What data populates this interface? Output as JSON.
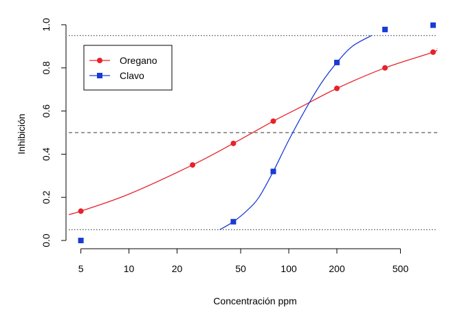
{
  "chart_data": {
    "type": "scatter",
    "xlabel": "Concentración ppm",
    "ylabel": "Inhibición",
    "x_scale": "log",
    "xlim": [
      4.2,
      850
    ],
    "ylim": [
      0.0,
      1.0
    ],
    "x_ticks": [
      5,
      10,
      20,
      50,
      100,
      200,
      500
    ],
    "x_tick_labels": [
      "5",
      "10",
      "20",
      "50",
      "100",
      "200",
      "500"
    ],
    "y_ticks": [
      0.0,
      0.2,
      0.4,
      0.6,
      0.8,
      1.0
    ],
    "y_tick_labels": [
      "0.0",
      "0.2",
      "0.4",
      "0.6",
      "0.8",
      "1.0"
    ],
    "grid": false,
    "reference_lines": [
      {
        "y": 0.95,
        "style": "dotted"
      },
      {
        "y": 0.5,
        "style": "dashed"
      },
      {
        "y": 0.05,
        "style": "dotted"
      }
    ],
    "legend_position": "top-left",
    "series": [
      {
        "name": "Oregano",
        "color": "#e8212b",
        "marker": "circle",
        "points": [
          {
            "x": 5,
            "y": 0.136
          },
          {
            "x": 25,
            "y": 0.35
          },
          {
            "x": 45,
            "y": 0.45
          },
          {
            "x": 80,
            "y": 0.553
          },
          {
            "x": 200,
            "y": 0.705
          },
          {
            "x": 400,
            "y": 0.8
          },
          {
            "x": 800,
            "y": 0.873
          }
        ],
        "curve": [
          {
            "x": 4.2,
            "y": 0.12
          },
          {
            "x": 5,
            "y": 0.136
          },
          {
            "x": 10,
            "y": 0.215
          },
          {
            "x": 25,
            "y": 0.35
          },
          {
            "x": 45,
            "y": 0.45
          },
          {
            "x": 80,
            "y": 0.553
          },
          {
            "x": 120,
            "y": 0.62
          },
          {
            "x": 200,
            "y": 0.705
          },
          {
            "x": 400,
            "y": 0.8
          },
          {
            "x": 800,
            "y": 0.873
          },
          {
            "x": 850,
            "y": 0.89
          }
        ]
      },
      {
        "name": "Clavo",
        "color": "#1a3ad6",
        "marker": "square",
        "points": [
          {
            "x": 5,
            "y": 0.0
          },
          {
            "x": 45,
            "y": 0.087
          },
          {
            "x": 80,
            "y": 0.32
          },
          {
            "x": 200,
            "y": 0.825
          },
          {
            "x": 400,
            "y": 0.978
          },
          {
            "x": 800,
            "y": 0.998
          }
        ],
        "curve": [
          {
            "x": 37,
            "y": 0.05
          },
          {
            "x": 45,
            "y": 0.087
          },
          {
            "x": 55,
            "y": 0.14
          },
          {
            "x": 65,
            "y": 0.2
          },
          {
            "x": 80,
            "y": 0.32
          },
          {
            "x": 100,
            "y": 0.465
          },
          {
            "x": 130,
            "y": 0.62
          },
          {
            "x": 160,
            "y": 0.73
          },
          {
            "x": 200,
            "y": 0.825
          },
          {
            "x": 250,
            "y": 0.9
          },
          {
            "x": 330,
            "y": 0.95
          }
        ]
      }
    ]
  }
}
